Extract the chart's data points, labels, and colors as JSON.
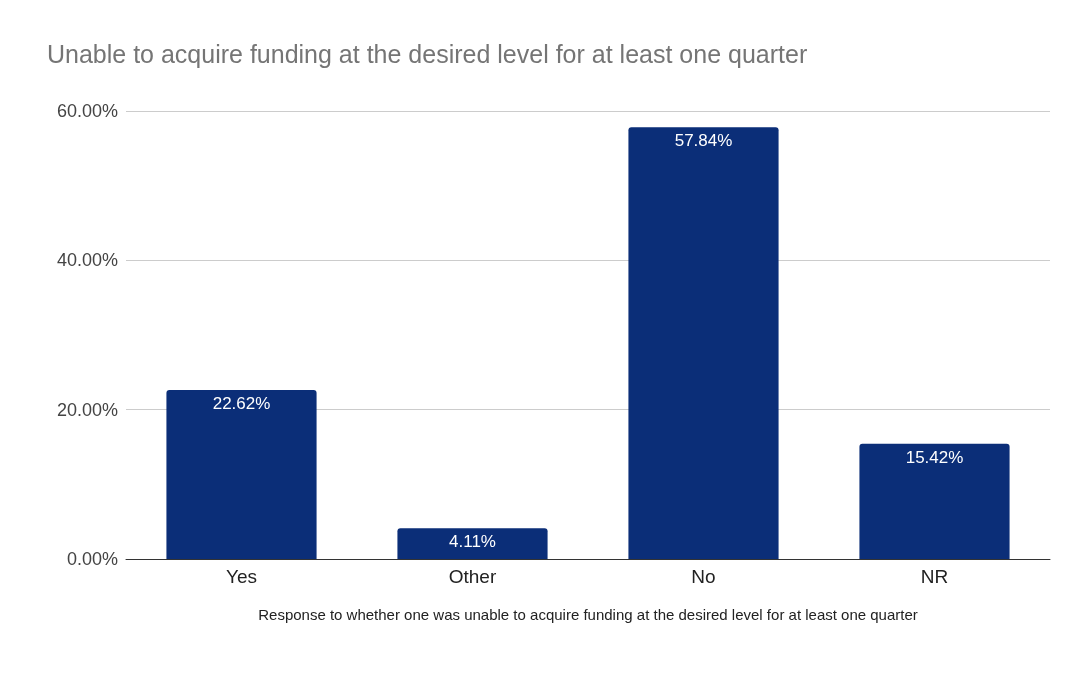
{
  "chart_data": {
    "type": "bar",
    "title": "Unable to acquire funding at the desired level for at least one quarter",
    "xlabel": "Response to whether one was unable to acquire funding at the desired level for at least one quarter",
    "categories": [
      "Yes",
      "Other",
      "No",
      "NR"
    ],
    "values": [
      22.62,
      4.11,
      57.84,
      15.42
    ],
    "value_labels": [
      "22.62%",
      "4.11%",
      "57.84%",
      "15.42%"
    ],
    "color": "#0b2e78",
    "ylim": [
      0,
      60
    ],
    "yticks": [
      {
        "value": 0,
        "label": "0.00%"
      },
      {
        "value": 20,
        "label": "20.00%"
      },
      {
        "value": 40,
        "label": "40.00%"
      },
      {
        "value": 60,
        "label": "60.00%"
      }
    ],
    "grid": "y"
  }
}
